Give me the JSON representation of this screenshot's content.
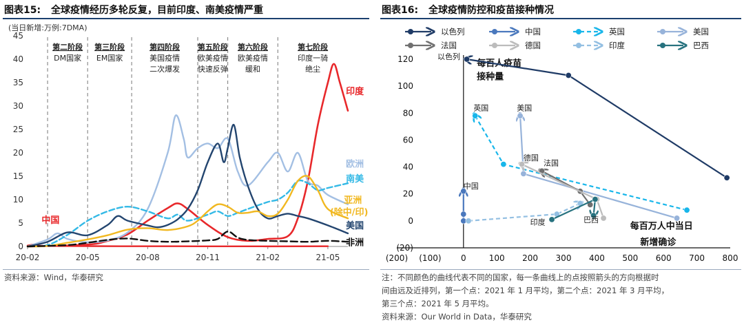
{
  "left": {
    "figure_no": "图表15:",
    "title": "全球疫情经历多轮反复，目前印度、南美疫情严重",
    "source": "资料来源：Wind，华泰研究"
  },
  "right": {
    "figure_no": "图表16:",
    "title": "全球疫情防控和疫苗接种情况",
    "note": [
      "注：不同颜色的曲线代表不同的国家，每一条曲线上的点按照箭头的方向根据时",
      "间由远及近排列，第一个点：2021 年 1 月平均，第二个点：2021 年 3 月平均，",
      "第三个点：2021 年 5 月平均。"
    ],
    "source": "资料来源：Our World in Data，华泰研究"
  },
  "chart_data": [
    {
      "type": "line",
      "unit_label": "(当日新增:万例:7DMA)",
      "ylim": [
        0,
        45
      ],
      "yticks": [
        0,
        5,
        10,
        15,
        20,
        25,
        30,
        35,
        40,
        45
      ],
      "xticks": [
        "20-02",
        "20-05",
        "20-08",
        "20-11",
        "21-02",
        "21-05"
      ],
      "x_index_range": [
        0,
        16.0
      ],
      "phases": [
        {
          "label": [
            "第二阶段",
            "DM国家"
          ],
          "start": 1.0,
          "end": 3.0
        },
        {
          "label": [
            "第三阶段",
            "EM国家"
          ],
          "start": 3.0,
          "end": 5.2
        },
        {
          "label": [
            "第四阶段",
            "美国疫情",
            "二次爆发"
          ],
          "start": 5.2,
          "end": 8.5
        },
        {
          "label": [
            "第五阶段",
            "欧美疫情",
            "快速反弹"
          ],
          "start": 8.5,
          "end": 10.0
        },
        {
          "label": [
            "第六阶段",
            "欧美疫情",
            "缓和"
          ],
          "start": 10.0,
          "end": 12.5
        },
        {
          "label": [
            "第七阶段",
            "印度一骑",
            "绝尘"
          ],
          "start": 12.5,
          "end": 16.0
        }
      ],
      "series": [
        {
          "name": "中国",
          "color": "#e8282b",
          "dash": "",
          "points": [
            [
              0,
              0.2
            ],
            [
              0.5,
              0.5
            ],
            [
              1,
              0.1
            ],
            [
              6,
              0.05
            ],
            [
              12,
              0.02
            ],
            [
              15,
              0.05
            ]
          ]
        },
        {
          "name": "印度",
          "color": "#e8282b",
          "dash": "",
          "points": [
            [
              0,
              0
            ],
            [
              3,
              0.4
            ],
            [
              4,
              1.2
            ],
            [
              5,
              2.6
            ],
            [
              6,
              5.5
            ],
            [
              7,
              8.2
            ],
            [
              7.5,
              9.2
            ],
            [
              8,
              8.0
            ],
            [
              9,
              4.6
            ],
            [
              10,
              2.0
            ],
            [
              11,
              1.2
            ],
            [
              12,
              1.6
            ],
            [
              13,
              2.2
            ],
            [
              13.5,
              6
            ],
            [
              14,
              14
            ],
            [
              14.5,
              26
            ],
            [
              15,
              35
            ],
            [
              15.3,
              39
            ],
            [
              15.6,
              35
            ],
            [
              16,
              29
            ]
          ]
        },
        {
          "name": "欧洲",
          "color": "#a3bfe3",
          "dash": "",
          "points": [
            [
              0,
              0
            ],
            [
              1,
              1.5
            ],
            [
              1.5,
              2.8
            ],
            [
              2,
              1.6
            ],
            [
              3,
              0.9
            ],
            [
              4,
              1.3
            ],
            [
              5,
              3
            ],
            [
              6,
              8
            ],
            [
              7,
              20
            ],
            [
              7.4,
              28
            ],
            [
              7.8,
              23
            ],
            [
              8,
              19
            ],
            [
              8.5,
              21
            ],
            [
              9,
              22
            ],
            [
              9.5,
              21
            ],
            [
              10,
              23
            ],
            [
              10.5,
              16
            ],
            [
              11,
              13
            ],
            [
              12,
              18
            ],
            [
              12.5,
              20
            ],
            [
              13,
              16
            ],
            [
              13.5,
              20
            ],
            [
              14,
              14
            ],
            [
              14.5,
              13
            ],
            [
              15,
              11
            ],
            [
              16,
              9
            ]
          ]
        },
        {
          "name": "南美",
          "color": "#33b9e6",
          "dash": "8,4",
          "points": [
            [
              0,
              0
            ],
            [
              1,
              0.3
            ],
            [
              2,
              2.5
            ],
            [
              3,
              5.5
            ],
            [
              4,
              7.5
            ],
            [
              5,
              8.5
            ],
            [
              6,
              7.5
            ],
            [
              7,
              6
            ],
            [
              7.5,
              6.8
            ],
            [
              8,
              5.5
            ],
            [
              9,
              6.8
            ],
            [
              9.5,
              7.5
            ],
            [
              10,
              6.5
            ],
            [
              10.5,
              7.2
            ],
            [
              11,
              8
            ],
            [
              12,
              9.5
            ],
            [
              12.5,
              10
            ],
            [
              13,
              11.5
            ],
            [
              13.5,
              14
            ],
            [
              14,
              13.5
            ],
            [
              14.5,
              12
            ],
            [
              15,
              12.5
            ],
            [
              16,
              13.5
            ]
          ]
        },
        {
          "name": "美国",
          "color": "#23456f",
          "dash": "",
          "points": [
            [
              0,
              0
            ],
            [
              1,
              1
            ],
            [
              2,
              3
            ],
            [
              3,
              2.4
            ],
            [
              4,
              4.6
            ],
            [
              4.5,
              6.5
            ],
            [
              5,
              5.5
            ],
            [
              6,
              4.5
            ],
            [
              6.5,
              4.1
            ],
            [
              7,
              4.6
            ],
            [
              7.5,
              5.8
            ],
            [
              8,
              8
            ],
            [
              8.5,
              12
            ],
            [
              9,
              18
            ],
            [
              9.5,
              22
            ],
            [
              9.8,
              18
            ],
            [
              10,
              21
            ],
            [
              10.3,
              26
            ],
            [
              10.6,
              19
            ],
            [
              11,
              13
            ],
            [
              11.5,
              8
            ],
            [
              12,
              6
            ],
            [
              12.5,
              6.5
            ],
            [
              13,
              7
            ],
            [
              13.5,
              6.5
            ],
            [
              14,
              6
            ],
            [
              15,
              4.5
            ],
            [
              16,
              2.8
            ]
          ]
        },
        {
          "name": "亚洲(除中/印)",
          "color": "#f1b821",
          "dash": "",
          "points": [
            [
              0,
              0
            ],
            [
              1,
              0.1
            ],
            [
              2,
              0.8
            ],
            [
              3,
              1.5
            ],
            [
              4,
              2.4
            ],
            [
              5,
              3.6
            ],
            [
              6,
              3.9
            ],
            [
              7,
              3.5
            ],
            [
              8,
              4.3
            ],
            [
              8.5,
              5.5
            ],
            [
              9,
              7.5
            ],
            [
              9.5,
              9
            ],
            [
              10,
              8.5
            ],
            [
              10.5,
              7.2
            ],
            [
              11,
              7.2
            ],
            [
              11.5,
              7.5
            ],
            [
              12,
              6.5
            ],
            [
              12.5,
              7
            ],
            [
              13,
              10
            ],
            [
              13.5,
              14
            ],
            [
              14,
              15
            ],
            [
              14.5,
              12
            ],
            [
              15,
              8
            ],
            [
              16,
              6
            ]
          ]
        },
        {
          "name": "非洲",
          "color": "#111111",
          "dash": "10,5",
          "points": [
            [
              0,
              0
            ],
            [
              2,
              0.3
            ],
            [
              3,
              0.8
            ],
            [
              4,
              1.4
            ],
            [
              5,
              1.7
            ],
            [
              6,
              1.2
            ],
            [
              7,
              1.0
            ],
            [
              8,
              1.1
            ],
            [
              9,
              1.3
            ],
            [
              9.5,
              1.6
            ],
            [
              10,
              3.2
            ],
            [
              10.5,
              1.9
            ],
            [
              11,
              1.4
            ],
            [
              12,
              1.2
            ],
            [
              13,
              1.1
            ],
            [
              14,
              1.0
            ],
            [
              15,
              1.2
            ],
            [
              16,
              1.0
            ]
          ]
        }
      ],
      "series_labels": [
        {
          "text": "中国",
          "color": "#e8282b",
          "x": 0.7,
          "y": 5.0
        },
        {
          "text": "印度",
          "color": "#e8282b",
          "x": 15.9,
          "y": 32.5
        },
        {
          "text": "欧洲",
          "color": "#a3bfe3",
          "x": 15.9,
          "y": 17.0
        },
        {
          "text": "南美",
          "color": "#33b9e6",
          "x": 15.9,
          "y": 13.8
        },
        {
          "text": "亚洲",
          "color": "#f1b821",
          "x": 15.8,
          "y": 9.3
        },
        {
          "text": "(除中/印)",
          "color": "#f1b821",
          "x": 15.1,
          "y": 6.7
        },
        {
          "text": "美国",
          "color": "#23456f",
          "x": 15.9,
          "y": 3.8
        },
        {
          "text": "非洲",
          "color": "#111111",
          "x": 15.9,
          "y": 0.2
        }
      ]
    },
    {
      "type": "line",
      "xlim": [
        -200,
        800
      ],
      "ylim": [
        -20,
        120
      ],
      "xticks": [
        -200,
        -100,
        0,
        100,
        200,
        300,
        400,
        500,
        600,
        700,
        800
      ],
      "yticks": [
        -20,
        0,
        20,
        40,
        60,
        80,
        100,
        120
      ],
      "ylabel_text": "每百人疫苗接种量",
      "xlabel_text": "每百万人中当日新增确诊",
      "series": [
        {
          "name": "以色列",
          "color": "#1f3b66",
          "dash": "",
          "points": [
            [
              790,
              32
            ],
            [
              315,
              108
            ],
            [
              10,
              120
            ]
          ]
        },
        {
          "name": "中国",
          "color": "#4a78bd",
          "dash": "",
          "points": [
            [
              0,
              0
            ],
            [
              0,
              5
            ],
            [
              0,
              22
            ]
          ]
        },
        {
          "name": "英国",
          "color": "#18b6ea",
          "dash": "6,4",
          "points": [
            [
              670,
              8
            ],
            [
              120,
              42
            ],
            [
              35,
              78
            ]
          ]
        },
        {
          "name": "美国",
          "color": "#97b3da",
          "dash": "",
          "points": [
            [
              640,
              2
            ],
            [
              180,
              35
            ],
            [
              170,
              78
            ]
          ]
        },
        {
          "name": "法国",
          "color": "#707070",
          "dash": "",
          "points": [
            [
              380,
              12
            ],
            [
              350,
              22
            ],
            [
              235,
              37
            ]
          ]
        },
        {
          "name": "德国",
          "color": "#bcbcbc",
          "dash": "",
          "points": [
            [
              420,
              2
            ],
            [
              400,
              16
            ],
            [
              175,
              42
            ]
          ]
        },
        {
          "name": "印度",
          "color": "#93bfe2",
          "dash": "6,4",
          "points": [
            [
              15,
              0
            ],
            [
              280,
              5
            ],
            [
              350,
              13
            ]
          ]
        },
        {
          "name": "巴西",
          "color": "#27727f",
          "dash": "",
          "points": [
            [
              265,
              1
            ],
            [
              395,
              16
            ],
            [
              390,
              4
            ]
          ]
        }
      ],
      "point_labels": [
        {
          "text": "以色列",
          "x": -10,
          "y": 120
        },
        {
          "text": "中国",
          "x": 0,
          "y": 24
        },
        {
          "text": "英国",
          "x": 30,
          "y": 82
        },
        {
          "text": "美国",
          "x": 160,
          "y": 82
        },
        {
          "text": "德国",
          "x": 180,
          "y": 45
        },
        {
          "text": "法国",
          "x": 240,
          "y": 41
        },
        {
          "text": "印度",
          "x": 200,
          "y": -3
        },
        {
          "text": "巴西",
          "x": 360,
          "y": -1
        }
      ]
    }
  ]
}
